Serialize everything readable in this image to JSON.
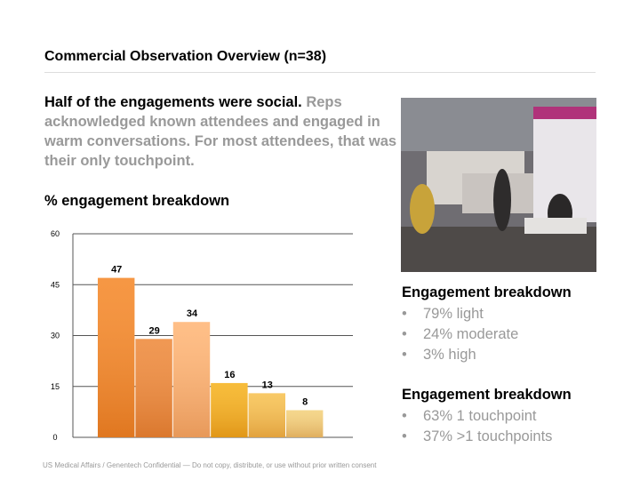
{
  "header": {
    "title": "Commercial Observation Overview (n=38)"
  },
  "headline": {
    "lead": "Half of the engagements were social.",
    "body": "Reps acknowledged known attendees and engaged in warm conversations. For most attendees, that was their only touchpoint."
  },
  "chart_data": {
    "type": "bar",
    "title": "% engagement breakdown",
    "categories": [
      null,
      null,
      null,
      null,
      null,
      null
    ],
    "values": [
      47,
      29,
      34,
      16,
      13,
      8
    ],
    "colors": [
      "#f5892a",
      "#ee8a3c",
      "#ffb677",
      "#f6b31f",
      "#f7c251",
      "#f4d27d"
    ],
    "ylim": [
      0,
      60
    ],
    "yticks": [
      0,
      15,
      30,
      45,
      60
    ],
    "grid": true
  },
  "panels": [
    {
      "heading": "Engagement breakdown",
      "items": [
        "79% light",
        "24% moderate",
        "3% high"
      ]
    },
    {
      "heading": "Engagement breakdown",
      "items": [
        "63% 1 touchpoint",
        "37% >1 touchpoints"
      ]
    }
  ],
  "footer": "US Medical Affairs / Genentech Confidential — Do not copy, distribute, or use without prior written consent"
}
